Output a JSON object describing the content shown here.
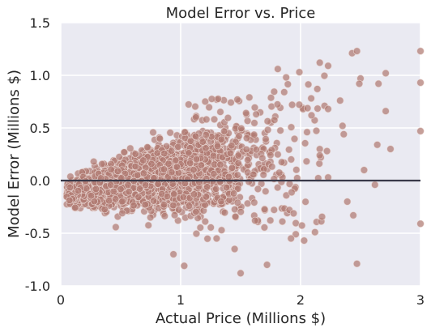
{
  "chart_data": {
    "type": "scatter",
    "title": "Model Error vs. Price",
    "xlabel": "Actual Price (Millions $)",
    "ylabel": "Model Error (Millions $)",
    "xlim": [
      0,
      3
    ],
    "ylim": [
      -1.0,
      1.5
    ],
    "x_ticks": [
      0,
      1,
      2,
      3
    ],
    "x_tick_labels": [
      "0",
      "1",
      "2",
      "3"
    ],
    "y_ticks": [
      -1.0,
      -0.5,
      0.0,
      0.5,
      1.0,
      1.5
    ],
    "y_tick_labels": [
      "-1.0",
      "-0.5",
      "0.0",
      "0.5",
      "1.0",
      "1.5"
    ],
    "grid": true,
    "reference_line": {
      "y": 0.0
    },
    "colors": {
      "background": "#eaeaf2",
      "grid": "#ffffff",
      "points": "#b07a72",
      "point_edge": "#e8d6d2",
      "reference_line": "#3a3a4a"
    },
    "outliers": [
      {
        "x": 2.43,
        "y": 1.21
      },
      {
        "x": 2.47,
        "y": 1.23
      },
      {
        "x": 2.33,
        "y": 0.76
      },
      {
        "x": 2.5,
        "y": 0.97
      },
      {
        "x": 2.49,
        "y": 0.92
      },
      {
        "x": 2.65,
        "y": 0.92
      },
      {
        "x": 2.71,
        "y": 1.02
      },
      {
        "x": 3.0,
        "y": 1.23
      },
      {
        "x": 3.0,
        "y": 0.93
      },
      {
        "x": 3.0,
        "y": 0.47
      },
      {
        "x": 2.71,
        "y": 0.66
      },
      {
        "x": 2.75,
        "y": 0.3
      },
      {
        "x": 2.64,
        "y": 0.34
      },
      {
        "x": 2.53,
        "y": 0.1
      },
      {
        "x": 2.62,
        "y": -0.04
      },
      {
        "x": 2.44,
        "y": -0.33
      },
      {
        "x": 2.39,
        "y": -0.2
      },
      {
        "x": 2.47,
        "y": -0.79
      },
      {
        "x": 3.0,
        "y": -0.41
      },
      {
        "x": 2.16,
        "y": 1.12
      },
      {
        "x": 2.23,
        "y": 1.09
      },
      {
        "x": 2.2,
        "y": 0.71
      },
      {
        "x": 2.23,
        "y": 0.68
      },
      {
        "x": 2.14,
        "y": 0.87
      },
      {
        "x": 2.35,
        "y": 0.52
      },
      {
        "x": 2.36,
        "y": 0.44
      },
      {
        "x": 2.22,
        "y": 0.28
      },
      {
        "x": 2.23,
        "y": 0.03
      },
      {
        "x": 2.16,
        "y": 0.24
      },
      {
        "x": 2.12,
        "y": -0.49
      },
      {
        "x": 2.03,
        "y": -0.57
      },
      {
        "x": 1.96,
        "y": -0.51
      },
      {
        "x": 1.92,
        "y": -0.55
      },
      {
        "x": 1.5,
        "y": -0.88
      },
      {
        "x": 1.72,
        "y": -0.8
      },
      {
        "x": 0.94,
        "y": -0.7
      },
      {
        "x": 1.03,
        "y": -0.81
      },
      {
        "x": 1.81,
        "y": 1.06
      },
      {
        "x": 1.99,
        "y": 1.03
      },
      {
        "x": 1.88,
        "y": 0.98
      },
      {
        "x": 1.93,
        "y": 0.72
      },
      {
        "x": 1.3,
        "y": -0.55
      },
      {
        "x": 1.45,
        "y": -0.65
      },
      {
        "x": 1.62,
        "y": -0.38
      }
    ],
    "cluster_model": "main cluster of several thousand points, x roughly 0.05-2.0; error increases with price, mean approx 0.20*(x-0.65), spread widening with x"
  }
}
